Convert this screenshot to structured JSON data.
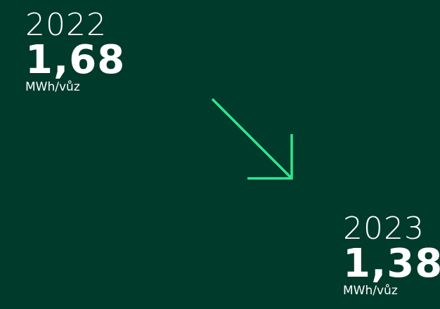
{
  "items": [
    {
      "year": "2022",
      "value": "1,68",
      "unit": "MWh/vůz"
    },
    {
      "year": "2023",
      "value": "1,38",
      "unit": "MWh/vůz"
    }
  ]
}
